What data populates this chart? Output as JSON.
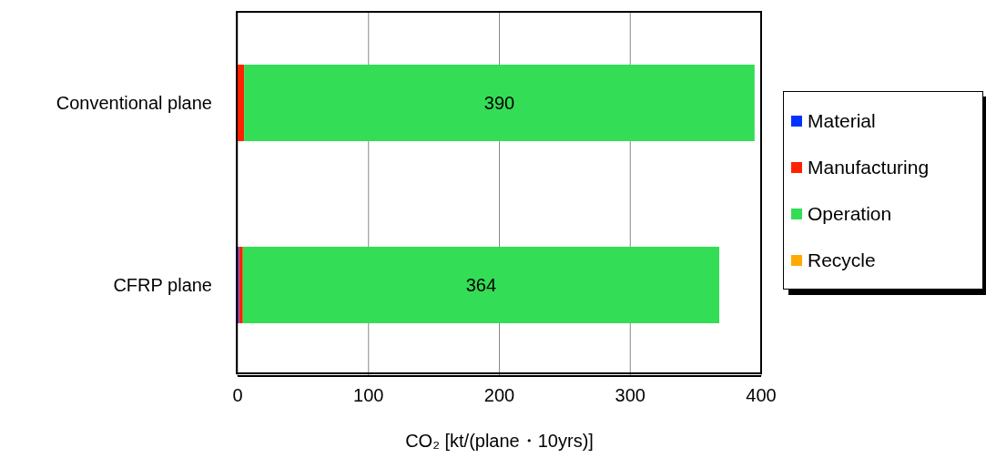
{
  "chart_data": {
    "type": "bar",
    "orientation": "horizontal",
    "stacked": true,
    "categories": [
      "Conventional plane",
      "CFRP plane"
    ],
    "xlabel": "CO₂ [kt/(plane・10yrs)]",
    "xlim": [
      0,
      400
    ],
    "xticks": [
      0,
      100,
      200,
      300,
      400
    ],
    "grid": "x",
    "legend": "right",
    "series": [
      {
        "name": "Material",
        "color": "#0033ff",
        "values": [
          0,
          1
        ]
      },
      {
        "name": "Manufacturing",
        "color": "#ff2200",
        "values": [
          5,
          3
        ]
      },
      {
        "name": "Operation",
        "color": "#33dd55",
        "values": [
          390,
          364
        ],
        "value_labels": [
          "390",
          "364"
        ]
      },
      {
        "name": "Recycle",
        "color": "#ffaa00",
        "values": [
          0,
          0
        ]
      }
    ]
  }
}
